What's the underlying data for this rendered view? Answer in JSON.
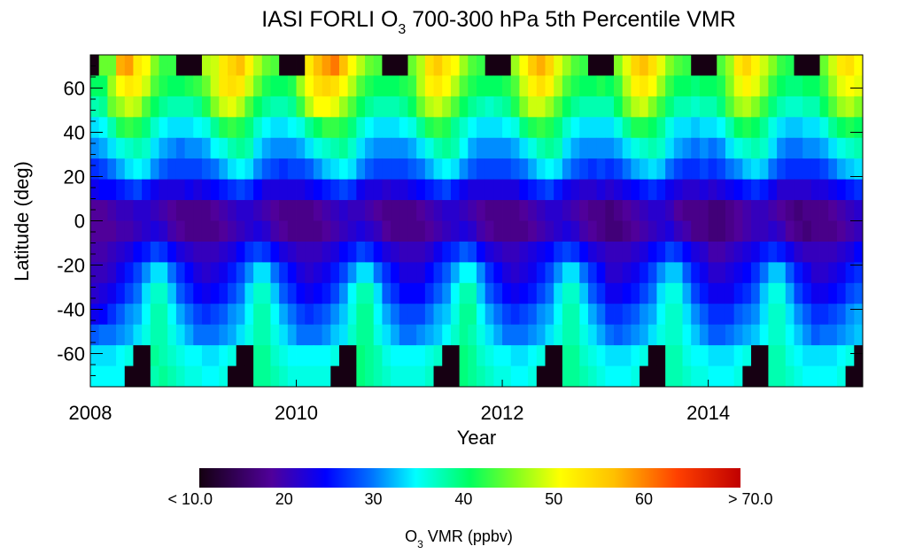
{
  "chart_data": {
    "type": "heatmap",
    "title": {
      "prefix": "IASI FORLI O",
      "sub": "3",
      "suffix": " 700-300 hPa 5th Percentile VMR"
    },
    "xlabel": "Year",
    "ylabel": "Latitude (deg)",
    "xlim": [
      2008,
      2015.5
    ],
    "ylim": [
      -75,
      75
    ],
    "x_ticks": [
      "2008",
      "2010",
      "2012",
      "2014"
    ],
    "y_ticks": [
      "60",
      "40",
      "20",
      "0",
      "-20",
      "-40",
      "-60"
    ],
    "time_resolution": "monthly, Jan 2008 - Jun 2015",
    "row_order": "north-to-south",
    "missing_value_color": "#160012",
    "values": [
      [
        null,
        44,
        44,
        57,
        58,
        52,
        50,
        45,
        42,
        42,
        null,
        null,
        null,
        47,
        48,
        52,
        54,
        56,
        51,
        47,
        44,
        43,
        null,
        null,
        null,
        52,
        56,
        58,
        60,
        56,
        50,
        47,
        44,
        43,
        null,
        null,
        null,
        44,
        47,
        53,
        55,
        52,
        50,
        46,
        43,
        42,
        null,
        null,
        null,
        46,
        50,
        55,
        57,
        54,
        49,
        46,
        43,
        42,
        null,
        null,
        null,
        45,
        49,
        54,
        56,
        53,
        49,
        45,
        43,
        42,
        null,
        null,
        null,
        43,
        46,
        52,
        54,
        51,
        48,
        45,
        42,
        41,
        null,
        null,
        null,
        44,
        48,
        52,
        53,
        50
      ],
      [
        40,
        40,
        46,
        50,
        52,
        51,
        48,
        43,
        41,
        40,
        40,
        41,
        42,
        44,
        48,
        52,
        53,
        52,
        48,
        44,
        41,
        40,
        40,
        41,
        46,
        50,
        53,
        54,
        53,
        50,
        47,
        43,
        41,
        40,
        40,
        40,
        41,
        42,
        47,
        51,
        52,
        50,
        47,
        43,
        41,
        40,
        40,
        40,
        41,
        43,
        48,
        51,
        53,
        51,
        47,
        43,
        41,
        40,
        40,
        41,
        40,
        42,
        47,
        51,
        52,
        50,
        46,
        42,
        40,
        40,
        39,
        40,
        40,
        41,
        45,
        49,
        51,
        49,
        46,
        42,
        40,
        39,
        39,
        40,
        40,
        42,
        46,
        49,
        50,
        49
      ],
      [
        37,
        38,
        44,
        46,
        48,
        47,
        43,
        40,
        38,
        37,
        37,
        37,
        38,
        41,
        45,
        48,
        49,
        47,
        43,
        40,
        38,
        37,
        37,
        38,
        42,
        47,
        50,
        50,
        49,
        46,
        43,
        40,
        38,
        37,
        37,
        37,
        38,
        40,
        44,
        47,
        48,
        46,
        43,
        40,
        38,
        37,
        36,
        37,
        38,
        41,
        45,
        48,
        48,
        46,
        43,
        40,
        38,
        37,
        37,
        37,
        37,
        40,
        44,
        47,
        48,
        45,
        42,
        39,
        37,
        37,
        36,
        37,
        37,
        39,
        43,
        46,
        47,
        45,
        42,
        39,
        37,
        36,
        36,
        37,
        37,
        40,
        43,
        46,
        47,
        45
      ],
      [
        33,
        34,
        37,
        41,
        42,
        41,
        39,
        36,
        34,
        33,
        33,
        33,
        34,
        35,
        38,
        41,
        42,
        41,
        39,
        36,
        34,
        33,
        33,
        34,
        35,
        38,
        40,
        42,
        42,
        41,
        39,
        36,
        34,
        33,
        33,
        33,
        34,
        35,
        38,
        41,
        42,
        41,
        38,
        36,
        34,
        33,
        33,
        33,
        34,
        35,
        39,
        41,
        42,
        41,
        39,
        36,
        34,
        33,
        33,
        33,
        33,
        35,
        38,
        41,
        41,
        40,
        38,
        35,
        33,
        33,
        32,
        33,
        33,
        34,
        37,
        40,
        41,
        40,
        38,
        35,
        33,
        32,
        32,
        33,
        33,
        35,
        38,
        40,
        41,
        40
      ],
      [
        30,
        31,
        33,
        35,
        36,
        37,
        36,
        33,
        31,
        30,
        29,
        30,
        30,
        31,
        34,
        35,
        37,
        38,
        37,
        33,
        31,
        30,
        30,
        30,
        31,
        33,
        35,
        36,
        37,
        38,
        36,
        33,
        31,
        30,
        30,
        30,
        30,
        31,
        33,
        35,
        37,
        38,
        37,
        34,
        31,
        30,
        30,
        30,
        30,
        31,
        33,
        35,
        37,
        38,
        37,
        33,
        31,
        30,
        30,
        30,
        30,
        31,
        33,
        35,
        36,
        37,
        36,
        33,
        31,
        30,
        29,
        30,
        29,
        30,
        33,
        35,
        36,
        37,
        36,
        33,
        30,
        29,
        29,
        30,
        30,
        31,
        33,
        35,
        36,
        37
      ],
      [
        26,
        27,
        29,
        31,
        33,
        34,
        33,
        30,
        28,
        27,
        27,
        27,
        27,
        28,
        29,
        31,
        33,
        34,
        33,
        30,
        28,
        27,
        26,
        27,
        27,
        28,
        30,
        32,
        33,
        34,
        33,
        30,
        28,
        27,
        27,
        27,
        27,
        28,
        29,
        31,
        33,
        34,
        33,
        30,
        28,
        27,
        27,
        27,
        27,
        28,
        29,
        31,
        33,
        34,
        33,
        30,
        28,
        27,
        26,
        27,
        26,
        27,
        29,
        31,
        32,
        33,
        32,
        29,
        27,
        26,
        26,
        27,
        26,
        27,
        29,
        30,
        32,
        33,
        32,
        29,
        27,
        26,
        26,
        26,
        26,
        27,
        29,
        31,
        32,
        33
      ],
      [
        23,
        24,
        24,
        25,
        26,
        27,
        25,
        23,
        22,
        22,
        22,
        23,
        22,
        23,
        24,
        25,
        26,
        27,
        26,
        24,
        22,
        22,
        22,
        22,
        22,
        23,
        24,
        25,
        26,
        27,
        26,
        23,
        22,
        22,
        21,
        22,
        22,
        23,
        24,
        25,
        26,
        27,
        25,
        23,
        22,
        22,
        22,
        22,
        22,
        22,
        24,
        25,
        26,
        27,
        25,
        23,
        22,
        21,
        21,
        22,
        21,
        22,
        23,
        24,
        25,
        26,
        25,
        23,
        22,
        21,
        21,
        22,
        21,
        22,
        23,
        24,
        25,
        26,
        25,
        23,
        21,
        21,
        21,
        21,
        22,
        22,
        23,
        24,
        25,
        26
      ],
      [
        18,
        18,
        19,
        20,
        20,
        21,
        21,
        20,
        19,
        18,
        17,
        17,
        17,
        17,
        18,
        19,
        20,
        21,
        21,
        20,
        19,
        18,
        17,
        17,
        17,
        17,
        18,
        19,
        20,
        21,
        20,
        20,
        19,
        18,
        17,
        17,
        17,
        17,
        18,
        19,
        20,
        21,
        21,
        20,
        19,
        18,
        17,
        17,
        17,
        17,
        18,
        19,
        20,
        21,
        21,
        20,
        19,
        18,
        17,
        17,
        16,
        17,
        18,
        19,
        20,
        21,
        21,
        20,
        18,
        17,
        17,
        17,
        16,
        16,
        17,
        18,
        19,
        20,
        20,
        19,
        18,
        17,
        16,
        17,
        17,
        17,
        18,
        19,
        20,
        21
      ],
      [
        18,
        18,
        18,
        19,
        19,
        20,
        21,
        22,
        21,
        19,
        18,
        17,
        17,
        17,
        17,
        18,
        19,
        20,
        21,
        22,
        21,
        19,
        18,
        17,
        17,
        17,
        17,
        18,
        19,
        20,
        21,
        22,
        21,
        20,
        18,
        17,
        17,
        17,
        17,
        18,
        19,
        20,
        21,
        22,
        21,
        19,
        18,
        17,
        17,
        17,
        17,
        18,
        19,
        20,
        21,
        22,
        21,
        19,
        18,
        17,
        16,
        16,
        17,
        18,
        19,
        20,
        21,
        22,
        20,
        19,
        17,
        17,
        16,
        16,
        17,
        18,
        19,
        20,
        20,
        21,
        20,
        18,
        17,
        16,
        17,
        17,
        17,
        18,
        19,
        20
      ],
      [
        19,
        19,
        20,
        21,
        22,
        24,
        25,
        27,
        26,
        24,
        22,
        21,
        20,
        20,
        20,
        21,
        22,
        24,
        26,
        27,
        26,
        24,
        22,
        21,
        20,
        20,
        20,
        21,
        22,
        24,
        25,
        27,
        26,
        24,
        22,
        21,
        20,
        20,
        20,
        21,
        23,
        25,
        26,
        28,
        27,
        24,
        22,
        21,
        20,
        20,
        21,
        22,
        23,
        24,
        26,
        27,
        26,
        24,
        22,
        21,
        20,
        20,
        20,
        21,
        22,
        24,
        25,
        27,
        26,
        24,
        22,
        21,
        19,
        19,
        20,
        21,
        22,
        23,
        25,
        26,
        25,
        23,
        21,
        20,
        20,
        20,
        20,
        21,
        22,
        24
      ],
      [
        20,
        20,
        21,
        23,
        25,
        27,
        30,
        33,
        33,
        29,
        26,
        24,
        22,
        21,
        22,
        23,
        25,
        27,
        30,
        33,
        33,
        29,
        26,
        24,
        22,
        21,
        22,
        23,
        25,
        27,
        30,
        33,
        33,
        29,
        26,
        24,
        22,
        22,
        22,
        24,
        26,
        28,
        31,
        34,
        34,
        30,
        26,
        24,
        22,
        21,
        22,
        23,
        25,
        27,
        30,
        33,
        33,
        29,
        26,
        24,
        21,
        21,
        22,
        23,
        25,
        27,
        30,
        32,
        32,
        28,
        25,
        23,
        21,
        21,
        22,
        23,
        24,
        26,
        29,
        32,
        32,
        28,
        25,
        23,
        21,
        21,
        22,
        23,
        25,
        26
      ],
      [
        21,
        22,
        23,
        25,
        27,
        29,
        33,
        36,
        36,
        32,
        28,
        26,
        24,
        23,
        24,
        25,
        27,
        29,
        33,
        36,
        36,
        32,
        28,
        26,
        24,
        23,
        24,
        25,
        27,
        30,
        34,
        37,
        37,
        33,
        28,
        26,
        24,
        24,
        24,
        26,
        28,
        30,
        34,
        37,
        37,
        32,
        28,
        26,
        24,
        23,
        24,
        25,
        27,
        29,
        33,
        36,
        36,
        32,
        28,
        26,
        23,
        23,
        24,
        25,
        27,
        29,
        33,
        35,
        35,
        31,
        27,
        25,
        23,
        23,
        23,
        25,
        26,
        28,
        32,
        35,
        35,
        31,
        27,
        25,
        23,
        23,
        24,
        25,
        27,
        28
      ],
      [
        23,
        24,
        26,
        28,
        30,
        31,
        34,
        37,
        37,
        34,
        31,
        29,
        27,
        26,
        27,
        28,
        30,
        31,
        34,
        37,
        37,
        34,
        31,
        29,
        27,
        26,
        27,
        28,
        30,
        32,
        35,
        38,
        38,
        34,
        31,
        29,
        27,
        27,
        27,
        29,
        31,
        32,
        35,
        38,
        38,
        34,
        31,
        29,
        27,
        26,
        27,
        28,
        30,
        31,
        34,
        37,
        37,
        34,
        31,
        29,
        26,
        26,
        27,
        28,
        30,
        31,
        34,
        36,
        36,
        33,
        30,
        28,
        26,
        26,
        26,
        28,
        29,
        30,
        33,
        36,
        36,
        33,
        30,
        28,
        26,
        26,
        27,
        28,
        30,
        31
      ],
      [
        28,
        29,
        29,
        30,
        31,
        33,
        35,
        37,
        37,
        35,
        33,
        31,
        29,
        29,
        29,
        30,
        31,
        33,
        35,
        37,
        37,
        35,
        33,
        31,
        29,
        29,
        29,
        30,
        32,
        33,
        36,
        38,
        38,
        35,
        33,
        31,
        29,
        29,
        30,
        31,
        32,
        34,
        36,
        38,
        37,
        35,
        33,
        31,
        29,
        29,
        29,
        30,
        31,
        33,
        35,
        37,
        37,
        35,
        33,
        31,
        29,
        28,
        29,
        30,
        31,
        33,
        35,
        36,
        36,
        34,
        32,
        30,
        28,
        28,
        29,
        30,
        31,
        32,
        34,
        36,
        36,
        34,
        32,
        30,
        28,
        29,
        29,
        30,
        31,
        32
      ],
      [
        33,
        33,
        33,
        34,
        35,
        null,
        null,
        38,
        37,
        36,
        35,
        34,
        34,
        33,
        33,
        34,
        35,
        null,
        null,
        38,
        38,
        36,
        35,
        34,
        34,
        34,
        34,
        34,
        35,
        null,
        null,
        39,
        38,
        37,
        35,
        34,
        34,
        34,
        34,
        35,
        36,
        null,
        null,
        39,
        38,
        36,
        35,
        34,
        34,
        33,
        33,
        34,
        35,
        null,
        null,
        38,
        38,
        36,
        35,
        34,
        33,
        33,
        33,
        34,
        35,
        null,
        null,
        37,
        37,
        35,
        34,
        34,
        33,
        33,
        33,
        34,
        35,
        null,
        null,
        37,
        37,
        35,
        34,
        33,
        33,
        33,
        33,
        34,
        35,
        null
      ],
      [
        34,
        34,
        34,
        34,
        null,
        null,
        null,
        37,
        38,
        37,
        36,
        35,
        35,
        34,
        34,
        35,
        null,
        null,
        null,
        38,
        38,
        37,
        36,
        35,
        35,
        35,
        35,
        35,
        null,
        null,
        null,
        39,
        38,
        37,
        36,
        35,
        35,
        35,
        35,
        36,
        null,
        null,
        null,
        39,
        38,
        37,
        36,
        35,
        35,
        34,
        34,
        35,
        null,
        null,
        null,
        38,
        38,
        37,
        36,
        35,
        34,
        34,
        34,
        35,
        null,
        null,
        null,
        37,
        37,
        36,
        35,
        35,
        34,
        34,
        34,
        35,
        null,
        null,
        null,
        37,
        37,
        36,
        35,
        34,
        34,
        34,
        34,
        35,
        null,
        null
      ]
    ],
    "colorbar": {
      "range": [
        10,
        70
      ],
      "tick_labels": [
        "< 10.0",
        "20",
        "30",
        "40",
        "50",
        "60",
        "> 70.0"
      ],
      "label": {
        "prefix": "O",
        "sub": "3",
        "suffix": " VMR (ppbv)"
      },
      "colormap": [
        [
          10,
          "#140010"
        ],
        [
          18,
          "#50009a"
        ],
        [
          24,
          "#0000ff"
        ],
        [
          29,
          "#0070ff"
        ],
        [
          34,
          "#00ffff"
        ],
        [
          40,
          "#00ff60"
        ],
        [
          45,
          "#80ff20"
        ],
        [
          50,
          "#ffff00"
        ],
        [
          56,
          "#ffc000"
        ],
        [
          63,
          "#ff4000"
        ],
        [
          70,
          "#c00000"
        ]
      ]
    }
  }
}
